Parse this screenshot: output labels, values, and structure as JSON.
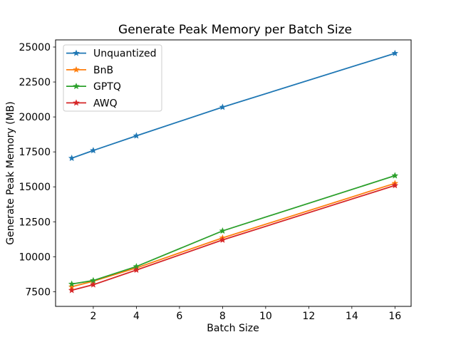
{
  "chart_data": {
    "type": "line",
    "title": "Generate Peak Memory per Batch Size",
    "xlabel": "Batch Size",
    "ylabel": "Generate Peak Memory (MB)",
    "x": [
      1,
      2,
      4,
      8,
      16
    ],
    "series": [
      {
        "name": "Unquantized",
        "color": "#1f77b4",
        "values": [
          17050,
          17600,
          18650,
          20700,
          24550
        ]
      },
      {
        "name": "BnB",
        "color": "#ff7f0e",
        "values": [
          7850,
          8250,
          9200,
          11350,
          15250
        ]
      },
      {
        "name": "GPTQ",
        "color": "#2ca02c",
        "values": [
          8050,
          8300,
          9300,
          11850,
          15800
        ]
      },
      {
        "name": "AWQ",
        "color": "#d62728",
        "values": [
          7600,
          8000,
          9050,
          11200,
          15100
        ]
      }
    ],
    "xticks": [
      2,
      4,
      6,
      8,
      10,
      12,
      14,
      16
    ],
    "yticks": [
      7500,
      10000,
      12500,
      15000,
      17500,
      20000,
      22500,
      25000
    ],
    "xlim": [
      0.25,
      16.75
    ],
    "ylim": [
      6450,
      25510
    ],
    "marker": "star",
    "grid": false,
    "legend_position": "upper-left",
    "axis_color": "#000000",
    "legend_border_color": "#cccccc",
    "background": "#ffffff"
  }
}
